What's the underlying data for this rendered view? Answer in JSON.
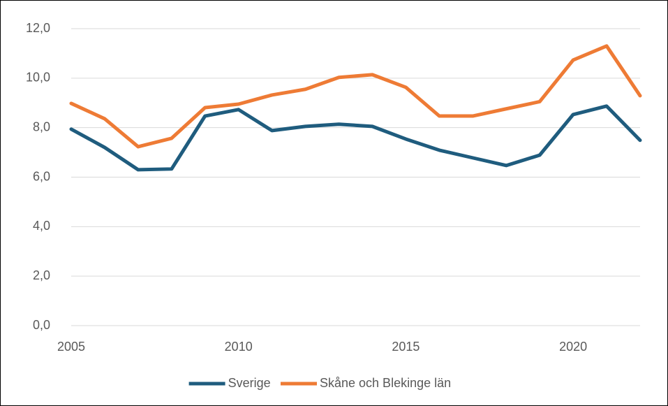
{
  "chart_data": {
    "type": "line",
    "x": [
      2005,
      2006,
      2007,
      2008,
      2009,
      2010,
      2011,
      2012,
      2013,
      2014,
      2015,
      2016,
      2017,
      2018,
      2019,
      2020,
      2021,
      2022
    ],
    "series": [
      {
        "name": "Sverige",
        "color": "#1f5c7e",
        "values": [
          7.94,
          7.2,
          6.3,
          6.33,
          8.47,
          8.73,
          7.88,
          8.05,
          8.14,
          8.05,
          7.54,
          7.09,
          6.78,
          6.47,
          6.89,
          8.53,
          8.87,
          7.49
        ]
      },
      {
        "name": "Skåne och Blekinge län",
        "color": "#ee7b35",
        "values": [
          8.98,
          8.36,
          7.23,
          7.57,
          8.81,
          8.95,
          9.32,
          9.55,
          10.03,
          10.14,
          9.63,
          8.47,
          8.47,
          8.76,
          9.05,
          10.73,
          11.3,
          9.29
        ]
      }
    ],
    "xlim": [
      2005,
      2022
    ],
    "xticks": [
      2005,
      2010,
      2015,
      2020
    ],
    "ylim": [
      0,
      12
    ],
    "yticks": [
      {
        "value": 0,
        "label": "0,0"
      },
      {
        "value": 2,
        "label": "2,0"
      },
      {
        "value": 4,
        "label": "4,0"
      },
      {
        "value": 6,
        "label": "6,0"
      },
      {
        "value": 8,
        "label": "8,0"
      },
      {
        "value": 10,
        "label": "10,0"
      },
      {
        "value": 12,
        "label": "12,0"
      }
    ],
    "grid": true,
    "legend": "bottom"
  }
}
